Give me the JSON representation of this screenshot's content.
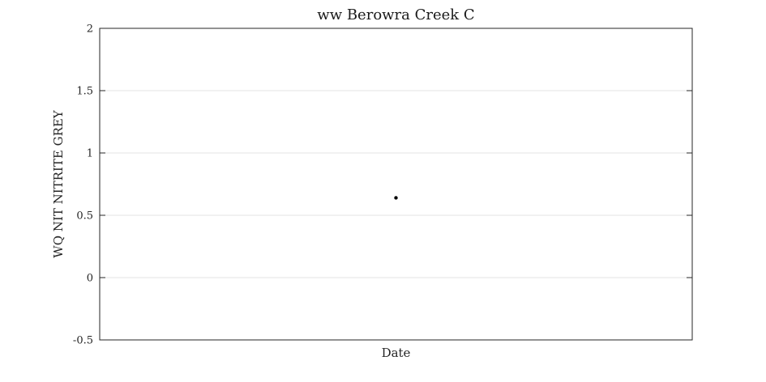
{
  "chart_data": {
    "type": "scatter",
    "title": "ww Berowra Creek C",
    "xlabel": "Date",
    "ylabel": "WQ NIT NITRITE GREY",
    "ylim": [
      -0.5,
      2
    ],
    "yticks": [
      -0.5,
      0,
      0.5,
      1,
      1.5,
      2
    ],
    "ytick_labels": [
      "-0.5",
      "0",
      "0.5",
      "1",
      "1.5",
      "2"
    ],
    "xtick_labels": [],
    "grid": "horizontal",
    "series": [
      {
        "points": [
          {
            "x": 0.5,
            "y": 0.64
          }
        ],
        "color": "#000000"
      }
    ],
    "xlim": [
      0,
      1
    ]
  }
}
